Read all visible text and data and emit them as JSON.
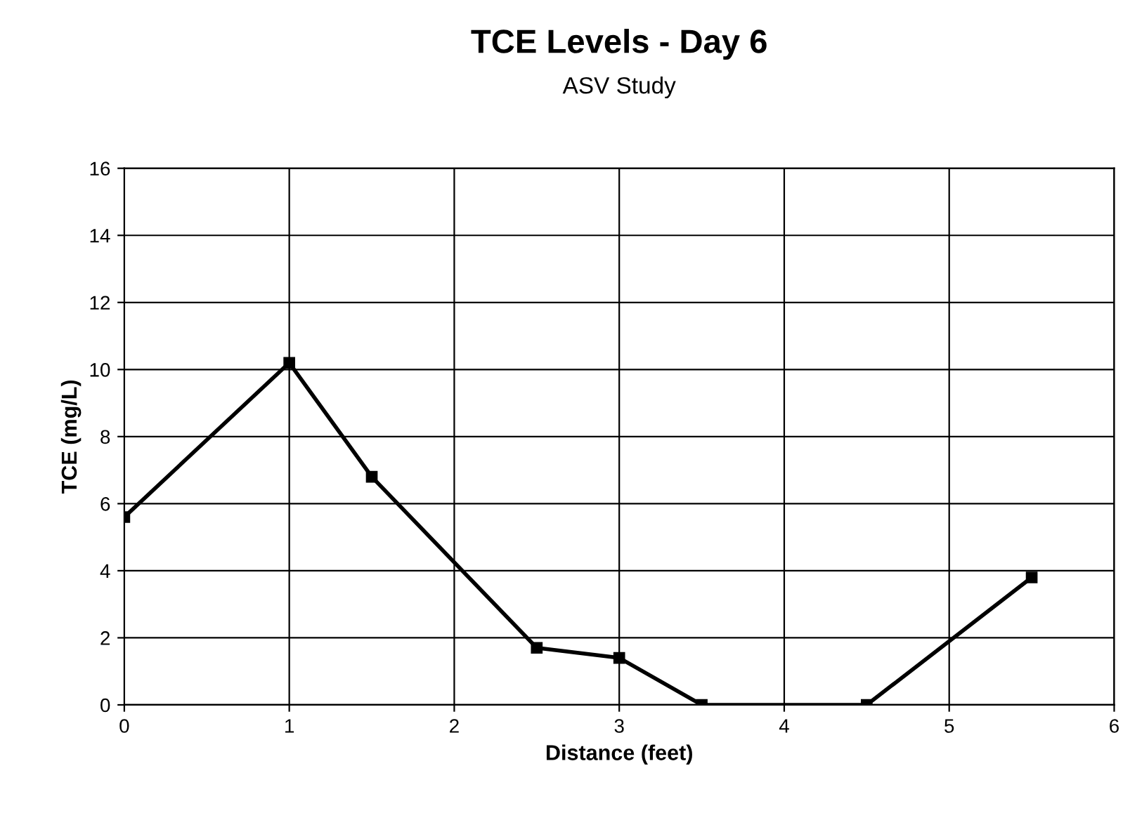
{
  "chart_data": {
    "type": "line",
    "title": "TCE Levels - Day 6",
    "subtitle": "ASV Study",
    "xlabel": "Distance (feet)",
    "ylabel": "TCE (mg/L)",
    "x": [
      0,
      1,
      1.5,
      2.5,
      3,
      3.5,
      4.5,
      5.5
    ],
    "series": [
      {
        "color": "#000000",
        "values": [
          5.6,
          10.2,
          6.8,
          1.7,
          1.4,
          0,
          0,
          3.8
        ]
      }
    ],
    "xlim": [
      0,
      6
    ],
    "xticks": [
      0,
      1,
      2,
      3,
      4,
      5,
      6
    ],
    "ylim": [
      0,
      16
    ],
    "yticks": [
      0,
      2,
      4,
      6,
      8,
      10,
      12,
      14,
      16
    ],
    "grid": true,
    "marker": "square",
    "line_style": "solid"
  }
}
